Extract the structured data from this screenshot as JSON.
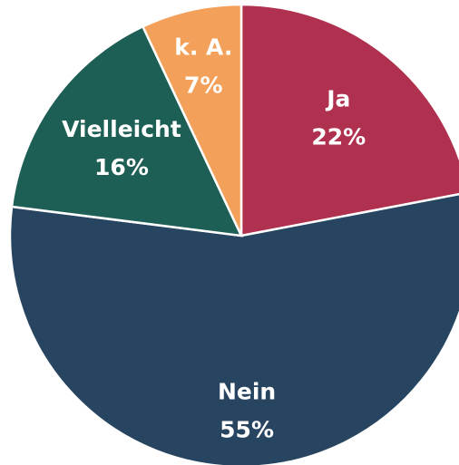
{
  "chart_data": {
    "type": "pie",
    "categories": [
      "Ja",
      "Nein",
      "Vielleicht",
      "k. A."
    ],
    "values": [
      22,
      55,
      16,
      7
    ],
    "value_labels": [
      "22%",
      "55%",
      "16%",
      "7%"
    ],
    "colors": [
      "#b0304f",
      "#274560",
      "#1d5e55",
      "#f2a05a"
    ]
  }
}
